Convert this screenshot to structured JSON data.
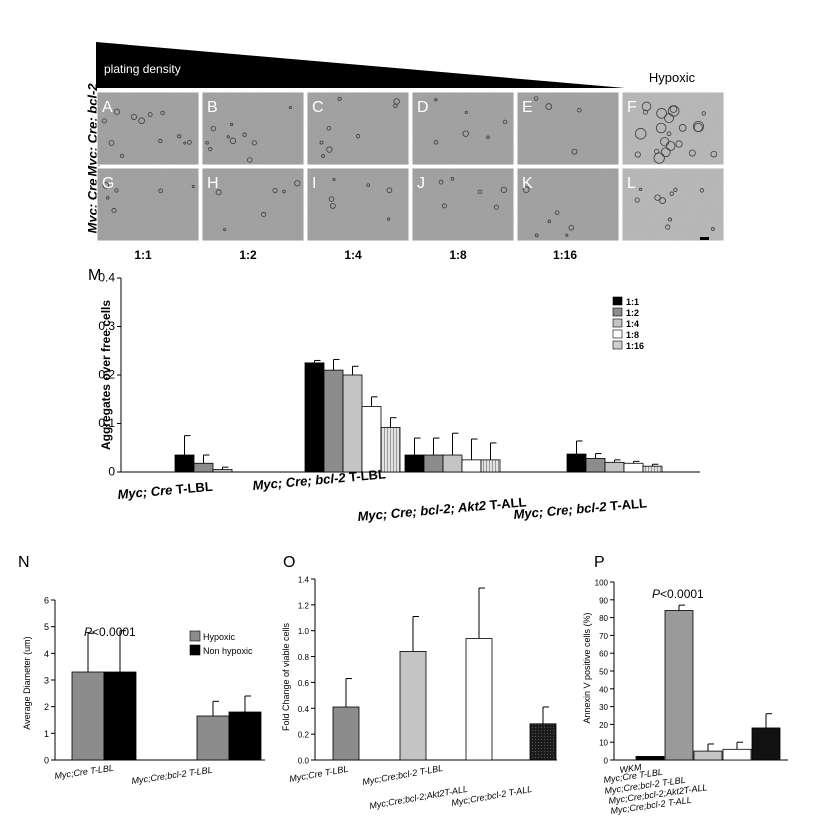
{
  "top": {
    "density_label": "plating density",
    "hypoxic_label": "Hypoxic",
    "row1_label": "Myc; Cre; bcl-2",
    "row2_label": "Myc; Cre",
    "panels_row1": [
      "A",
      "B",
      "C",
      "D",
      "E",
      "F"
    ],
    "panels_row2": [
      "G",
      "H",
      "I",
      "J",
      "K",
      "L"
    ],
    "ratios": [
      "1:1",
      "1:2",
      "1:4",
      "1:8",
      "1:16"
    ]
  },
  "chart_data": [
    {
      "panel": "M",
      "type": "bar",
      "ylabel": "Aggregates over free cells",
      "ylim": [
        0,
        0.4
      ],
      "yticks": [
        "0",
        "0.1",
        "0.2",
        "0.3",
        "0.4"
      ],
      "categories": [
        "Myc; Cre T-LBL",
        "Myc; Cre; bcl-2 T-LBL",
        "Myc; Cre; bcl-2; Akt2 T-ALL",
        "Myc; Cre; bcl-2 T-ALL"
      ],
      "category_labels": [
        {
          "a": "Myc; Cre ",
          "b": "T-LBL"
        },
        {
          "a": "Myc; Cre; ",
          "b": "bcl-2",
          "c": " T-LBL"
        },
        {
          "a": "Myc; Cre; ",
          "b": "bcl-2; Akt2",
          "c": " T-ALL"
        },
        {
          "a": "Myc; Cre; ",
          "b": "bcl-2",
          "c": " T-ALL"
        }
      ],
      "series": [
        {
          "name": "1:1",
          "color": "#000000",
          "values": [
            0.035,
            0.225,
            0.035,
            0.037
          ],
          "err": [
            0.04,
            0.005,
            0.035,
            0.027
          ]
        },
        {
          "name": "1:2",
          "color": "#8c8c8c",
          "values": [
            0.018,
            0.21,
            0.035,
            0.028
          ],
          "err": [
            0.017,
            0.022,
            0.035,
            0.01
          ]
        },
        {
          "name": "1:4",
          "color": "#c4c4c4",
          "values": [
            0.005,
            0.2,
            0.035,
            0.02
          ],
          "err": [
            0.005,
            0.018,
            0.045,
            0.005
          ]
        },
        {
          "name": "1:8",
          "color": "#ffffff",
          "values": [
            null,
            0.135,
            0.025,
            0.018
          ],
          "err": [
            null,
            0.02,
            0.043,
            0.004
          ]
        },
        {
          "name": "1:16",
          "color": "#d6d6d6",
          "values": [
            null,
            0.092,
            0.025,
            0.012
          ],
          "err": [
            null,
            0.02,
            0.035,
            0.004
          ]
        }
      ]
    },
    {
      "panel": "N",
      "type": "bar",
      "ylabel": "Average Diameter (um)",
      "ylim": [
        0,
        6
      ],
      "yticks": [
        "0",
        "1",
        "2",
        "3",
        "4",
        "5",
        "6"
      ],
      "categories": [
        "Myc;Cre T-LBL",
        "Myc;Cre;bcl-2 T-LBL"
      ],
      "annotation": {
        "italic": "P",
        "rest": "<0.0001"
      },
      "series": [
        {
          "name": "Hypoxic",
          "color": "#8c8c8c",
          "values": [
            3.3,
            1.65
          ],
          "err": [
            1.45,
            0.55
          ]
        },
        {
          "name": "Non hypoxic",
          "color": "#000000",
          "values": [
            3.3,
            1.8
          ],
          "err": [
            1.55,
            0.6
          ]
        }
      ]
    },
    {
      "panel": "O",
      "type": "bar",
      "ylabel": "Fold Change of viable cells",
      "ylim": [
        0,
        1.4
      ],
      "yticks": [
        "0.0",
        "0.2",
        "0.4",
        "0.6",
        "0.8",
        "1.0",
        "1.2",
        "1.4"
      ],
      "categories": [
        "Myc;Cre T-LBL",
        "Myc;Cre;bcl-2 T-LBL",
        "Myc;Cre;bcl-2;Akt2T-ALL",
        "Myc;Cre;bcl-2 T-ALL"
      ],
      "colors": [
        "#8c8c8c",
        "#c4c4c4",
        "#ffffff",
        "#111111"
      ],
      "values": [
        0.41,
        0.84,
        0.94,
        0.28
      ],
      "err": [
        0.22,
        0.27,
        0.39,
        0.13
      ]
    },
    {
      "panel": "P",
      "type": "bar",
      "ylabel": "Annexin V positive cells (%)",
      "ylim": [
        0,
        100
      ],
      "yticks": [
        "0",
        "10",
        "20",
        "30",
        "40",
        "50",
        "60",
        "70",
        "80",
        "90",
        "100"
      ],
      "categories": [
        "WKM",
        "Myc;Cre T-LBL",
        "Myc;Cre;bcl-2 T-LBL",
        "Myc;Cre;bcl-2;Akt2T-ALL",
        "Myc;Cre;bcl-2 T-ALL"
      ],
      "colors": [
        "#000000",
        "#9a9a9a",
        "#c4c4c4",
        "#ffffff",
        "#111111"
      ],
      "values": [
        2,
        84,
        5,
        6,
        18
      ],
      "err": [
        0,
        3,
        4,
        4,
        8
      ],
      "annotation": {
        "italic": "P",
        "rest": "<0.0001"
      }
    }
  ]
}
